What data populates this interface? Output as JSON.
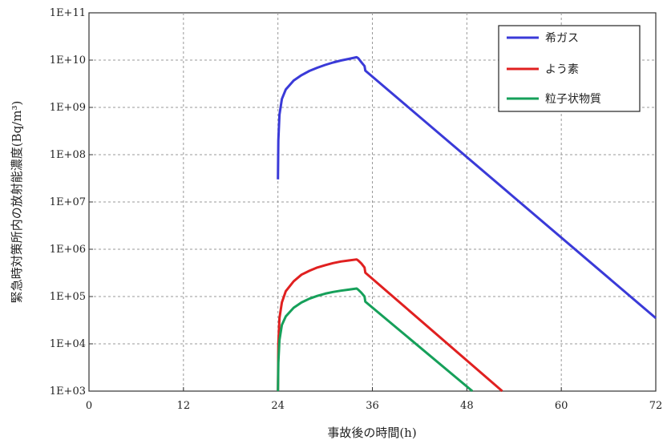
{
  "chart_data": {
    "type": "line",
    "title": "",
    "xlabel": "事故後の時間(h)",
    "ylabel": "緊急時対策所内の放射能濃度(Bq/m³)",
    "xlim": [
      0,
      72
    ],
    "ylim": [
      1000,
      100000000000
    ],
    "y_scale": "log",
    "grid": true,
    "legend_position": "top-right",
    "x_ticks": [
      0,
      12,
      24,
      36,
      48,
      60,
      72
    ],
    "x_tick_labels": [
      "0",
      "12",
      "24",
      "36",
      "48",
      "60",
      "72"
    ],
    "y_ticks": [
      1000,
      10000,
      100000,
      1000000,
      10000000,
      100000000,
      1000000000,
      10000000000,
      100000000000
    ],
    "y_tick_labels": [
      "1E+03",
      "1E+04",
      "1E+05",
      "1E+06",
      "1E+07",
      "1E+08",
      "1E+09",
      "1E+10",
      "1E+11"
    ],
    "series": [
      {
        "name": "希ガス",
        "color": "#3a3ad8",
        "x": [
          24,
          24.05,
          24.2,
          24.5,
          25,
          26,
          27,
          28,
          29,
          30,
          31,
          32,
          33,
          34,
          34.2,
          34.6,
          35,
          35.1,
          72
        ],
        "y": [
          30000000,
          200000000,
          700000000,
          1500000000,
          2400000000,
          3700000000,
          4800000000,
          5900000000,
          6900000000,
          7900000000,
          8900000000,
          9800000000,
          10600000000,
          11500000000,
          11000000000,
          9000000000,
          7500000000,
          6000000000,
          35000
        ]
      },
      {
        "name": "よう素",
        "color": "#e02020",
        "x": [
          24,
          24.05,
          24.2,
          24.5,
          25,
          26,
          27,
          28,
          29,
          30,
          31,
          32,
          33,
          34,
          34.2,
          34.6,
          35,
          35.1,
          52.5
        ],
        "y": [
          1000,
          10000,
          35000,
          75000,
          130000,
          210000,
          290000,
          350000,
          410000,
          460000,
          510000,
          550000,
          580000,
          610000,
          580000,
          500000,
          410000,
          320000,
          1000
        ]
      },
      {
        "name": "粒子状物質",
        "color": "#16a05a",
        "x": [
          24,
          24.05,
          24.2,
          24.5,
          25,
          26,
          27,
          28,
          29,
          30,
          31,
          32,
          33,
          34,
          34.2,
          34.6,
          35,
          35.1,
          48.7
        ],
        "y": [
          1000,
          4000,
          12000,
          25000,
          38000,
          58000,
          75000,
          90000,
          103000,
          115000,
          125000,
          133000,
          140000,
          148000,
          140000,
          120000,
          100000,
          78000,
          1000
        ]
      }
    ]
  }
}
